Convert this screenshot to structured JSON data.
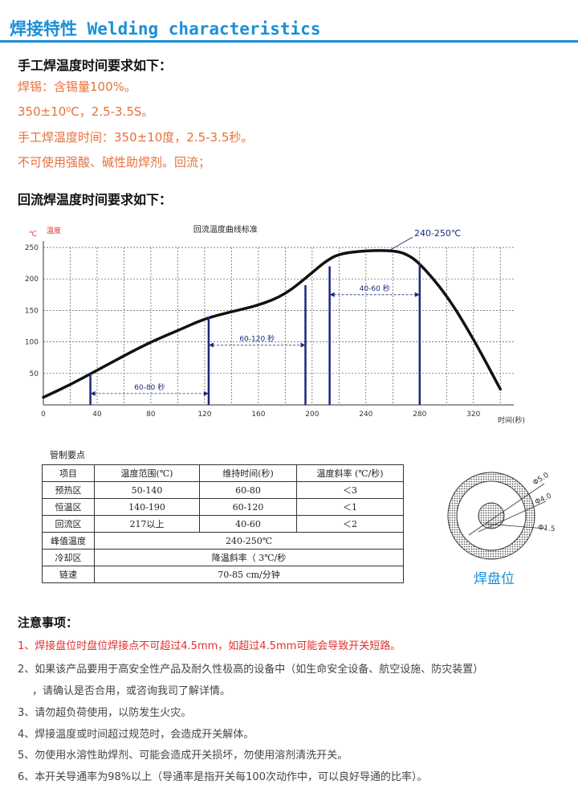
{
  "header": {
    "title": "焊接特性 Welding characteristics"
  },
  "manual": {
    "heading": "手工焊温度时间要求如下：",
    "lines": [
      "焊锡：含锡量100%。",
      "350±10⁰C，2.5-3.5S。",
      "手工焊温度时间：350±10度，2.5-3.5秒。",
      "不可使用强酸、碱性助焊剂。回流；"
    ]
  },
  "reflow": {
    "heading": "回流焊温度时间要求如下："
  },
  "chart_data": {
    "type": "line",
    "title": "回流温度曲线标准",
    "xlabel": "时间(秒)",
    "ylabel": "温度",
    "yunit": "℃",
    "xlim": [
      0,
      350
    ],
    "ylim": [
      0,
      250
    ],
    "xticks": [
      0,
      40,
      80,
      120,
      160,
      200,
      240,
      280,
      320
    ],
    "yticks": [
      50,
      100,
      150,
      200,
      250
    ],
    "grid": true,
    "series": [
      {
        "x": [
          0,
          20,
          40,
          60,
          80,
          100,
          120,
          140,
          160,
          180,
          200,
          210,
          220,
          240,
          260,
          270,
          280,
          300,
          320,
          340
        ],
        "y": [
          12,
          32,
          55,
          78,
          100,
          118,
          137,
          148,
          158,
          175,
          210,
          228,
          240,
          245,
          245,
          240,
          225,
          175,
          105,
          25
        ]
      }
    ],
    "markers": [
      {
        "x": 35,
        "y": 50
      },
      {
        "x": 123,
        "y": 140
      },
      {
        "x": 195,
        "y": 190
      },
      {
        "x": 213,
        "y": 220
      },
      {
        "x": 280,
        "y": 225
      }
    ],
    "annotations": [
      {
        "label": "60-80 秒",
        "from": 35,
        "to": 123,
        "y": 18
      },
      {
        "label": "60-120 秒",
        "from": 123,
        "to": 195,
        "y": 95
      },
      {
        "label": "40-60 秒",
        "from": 213,
        "to": 280,
        "y": 175
      }
    ],
    "peak_label": "240-250℃"
  },
  "control": {
    "title": "管制要点",
    "headers": [
      "项目",
      "温度范围(℃)",
      "维持时间(秒)",
      "温度斜率 (℃/秒)"
    ],
    "rows": [
      [
        "预热区",
        "50-140",
        "60-80",
        "＜3"
      ],
      [
        "恒温区",
        "140-190",
        "60-120",
        "＜1"
      ],
      [
        "回流区",
        "217以上",
        "40-60",
        "＜2"
      ]
    ],
    "peak": [
      "峰值温度",
      "240-250℃"
    ],
    "cool": [
      "冷却区",
      "降温斜率（ 3℃/秒"
    ],
    "speed": [
      "链速",
      "70-85 cm/分钟"
    ]
  },
  "pad": {
    "label": "焊盘位",
    "dims": [
      "Φ5.0",
      "Φ4.0",
      "Φ1.5"
    ]
  },
  "notes": {
    "heading": "注意事项：",
    "items": [
      "1、焊接盘位时盘位焊接点不可超过4.5mm，如超过4.5mm可能会导致开关短路。",
      "2、如果该产品要用于高安全性产品及耐久性极高的设备中（如生命安全设备、航空设施、防灾装置）",
      "，请确认是否合用，或咨询我司了解详情。",
      "3、请勿超负荷使用，以防发生火灾。",
      "4、焊接温度或时间超过规范时，会造成开关解体。",
      "5、勿使用水溶性助焊剂、可能会造成开关损坏，勿使用溶剂清洗开关。",
      "6、本开关导通率为98%以上（导通率是指开关每100次动作中，可以良好导通的比率）。"
    ]
  }
}
